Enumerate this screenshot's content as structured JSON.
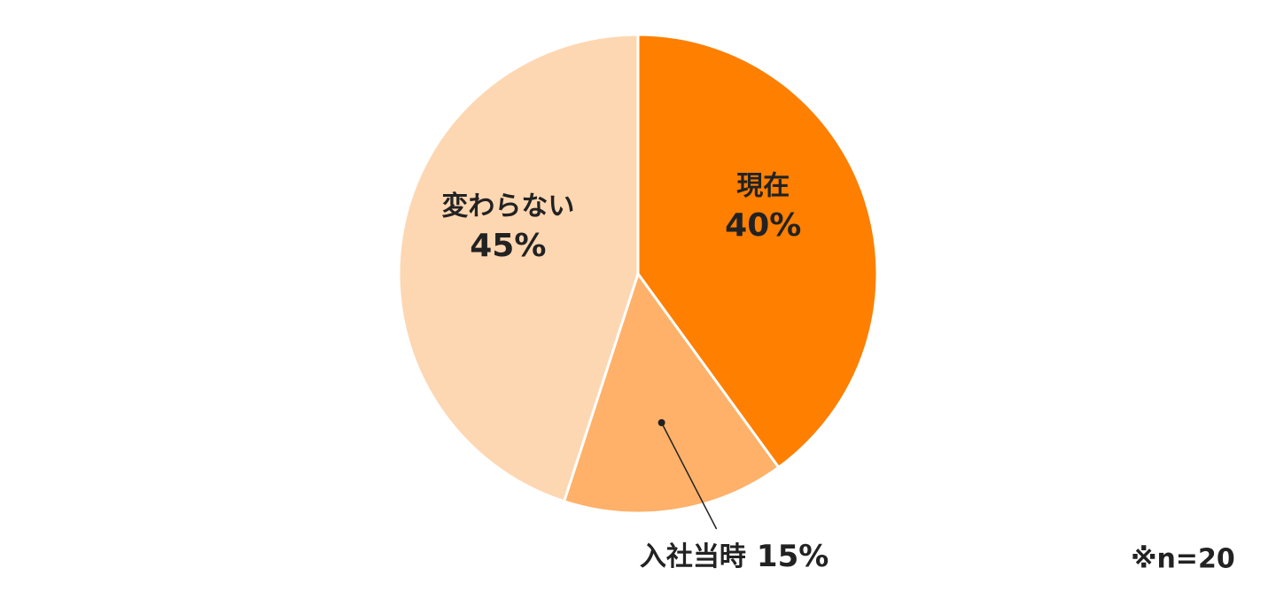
{
  "chart_data": {
    "type": "pie",
    "categories": [
      "現在",
      "入社当時",
      "変わらない"
    ],
    "values": [
      40,
      15,
      45
    ],
    "value_labels": [
      "40%",
      "15%",
      "45%"
    ],
    "colors": [
      "#ff7f00",
      "#ffb169",
      "#fdd7b2"
    ],
    "note": "※n=20"
  }
}
